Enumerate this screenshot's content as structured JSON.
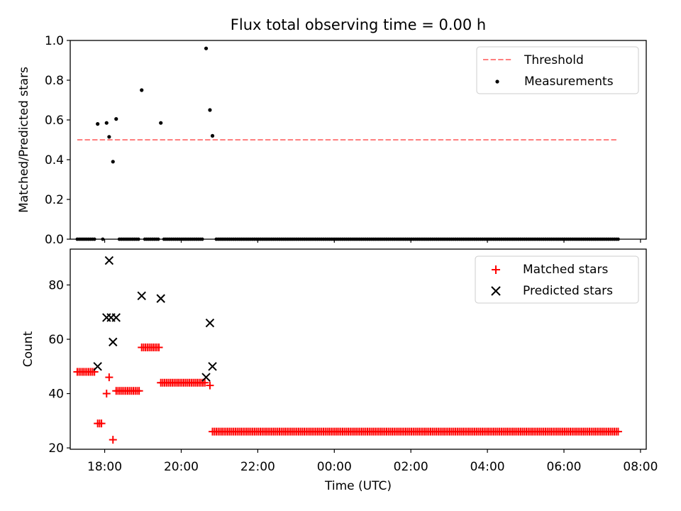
{
  "chart_data": [
    {
      "type": "scatter",
      "title": "Flux total observing time = 0.00 h",
      "xlabel": "",
      "ylabel": "Matched/Predicted stars",
      "xlim": [
        "17:06",
        "08:09"
      ],
      "ylim": [
        0,
        1.0
      ],
      "yticks": [
        "0.0",
        "0.2",
        "0.4",
        "0.6",
        "0.8",
        "1.0"
      ],
      "grid": false,
      "legend_position": "top-right",
      "series": [
        {
          "name": "Threshold",
          "kind": "dashed-line",
          "color": "#ff7f7f",
          "points": [
            {
              "x": "17:17",
              "y": 0.5
            },
            {
              "x": "07:25",
              "y": 0.5
            }
          ]
        },
        {
          "name": "Measurements",
          "kind": "dot",
          "color": "#000000",
          "points": [
            {
              "x": "17:49",
              "y": 0.58
            },
            {
              "x": "18:03",
              "y": 0.585
            },
            {
              "x": "18:07",
              "y": 0.515
            },
            {
              "x": "18:13",
              "y": 0.39
            },
            {
              "x": "18:18",
              "y": 0.605
            },
            {
              "x": "18:58",
              "y": 0.75
            },
            {
              "x": "19:28",
              "y": 0.585
            },
            {
              "x": "20:39",
              "y": 0.96
            },
            {
              "x": "20:45",
              "y": 0.65
            },
            {
              "x": "20:49",
              "y": 0.52
            }
          ],
          "zero_run": {
            "y": 0,
            "segments": [
              [
                "17:17",
                "17:46"
              ],
              [
                "17:57",
                "17:59"
              ],
              [
                "18:23",
                "18:55"
              ],
              [
                "19:03",
                "19:25"
              ],
              [
                "19:33",
                "20:35"
              ],
              [
                "20:55",
                "07:25"
              ]
            ],
            "step_minutes": 3
          }
        }
      ]
    },
    {
      "type": "scatter",
      "title": "",
      "xlabel": "Time (UTC)",
      "ylabel": "Count",
      "xlim": [
        "17:06",
        "08:09"
      ],
      "ylim": [
        19.5,
        93.2
      ],
      "xticks": [
        "18:00",
        "20:00",
        "22:00",
        "00:00",
        "02:00",
        "04:00",
        "06:00",
        "08:00"
      ],
      "yticks": [
        "20",
        "40",
        "60",
        "80"
      ],
      "grid": false,
      "legend_position": "top-right",
      "series": [
        {
          "name": "Matched stars",
          "marker": "plus",
          "color": "#ff0000",
          "runs": [
            {
              "from": "17:17",
              "to": "17:46",
              "y": 48
            },
            {
              "from": "17:49",
              "to": "17:57",
              "y": 29
            },
            {
              "from": "18:03",
              "to": "18:03",
              "y": 40
            },
            {
              "from": "18:07",
              "to": "18:07",
              "y": 46
            },
            {
              "from": "18:13",
              "to": "18:13",
              "y": 23
            },
            {
              "from": "18:18",
              "to": "18:55",
              "y": 41
            },
            {
              "from": "18:58",
              "to": "19:25",
              "y": 57
            },
            {
              "from": "19:28",
              "to": "20:39",
              "y": 44
            },
            {
              "from": "20:45",
              "to": "20:45",
              "y": 43
            },
            {
              "from": "20:49",
              "to": "07:25",
              "y": 26
            }
          ],
          "step_minutes": 3
        },
        {
          "name": "Predicted stars",
          "marker": "x",
          "color": "#000000",
          "points": [
            {
              "x": "17:49",
              "y": 50
            },
            {
              "x": "18:03",
              "y": 68
            },
            {
              "x": "18:07",
              "y": 89
            },
            {
              "x": "18:10",
              "y": 68
            },
            {
              "x": "18:13",
              "y": 59
            },
            {
              "x": "18:18",
              "y": 68
            },
            {
              "x": "18:58",
              "y": 76
            },
            {
              "x": "19:28",
              "y": 75
            },
            {
              "x": "20:39",
              "y": 46
            },
            {
              "x": "20:45",
              "y": 66
            },
            {
              "x": "20:49",
              "y": 50
            }
          ]
        }
      ]
    }
  ]
}
